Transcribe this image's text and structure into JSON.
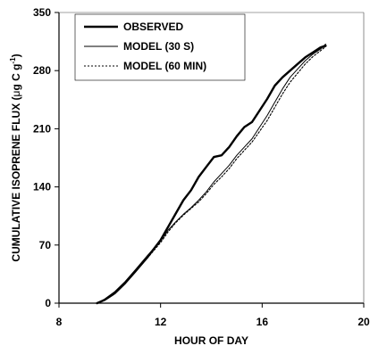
{
  "chart_data": {
    "type": "line",
    "title": "",
    "xlabel": "HOUR OF DAY",
    "ylabel_parts": [
      "CUMULATIVE ISOPRENE FLUX (",
      "μ",
      "g C g",
      "-1",
      ")"
    ],
    "xlim": [
      8,
      20
    ],
    "ylim": [
      0,
      350
    ],
    "x_ticks": [
      8,
      12,
      16,
      20
    ],
    "x_tick_labels": [
      "8",
      "12",
      "16",
      "20"
    ],
    "y_ticks": [
      0,
      70,
      140,
      210,
      280,
      350
    ],
    "y_tick_labels": [
      "0",
      "70",
      "140",
      "210",
      "280",
      "350"
    ],
    "grid": false,
    "legend_position": "top-left",
    "series": [
      {
        "name": "OBSERVED",
        "line_style": "solid-thick",
        "x": [
          9.5,
          9.8,
          10.2,
          10.6,
          11.0,
          11.5,
          12.0,
          12.3,
          12.6,
          12.9,
          13.2,
          13.5,
          13.8,
          14.1,
          14.4,
          14.7,
          15.0,
          15.3,
          15.6,
          15.9,
          16.2,
          16.5,
          16.8,
          17.1,
          17.4,
          17.7,
          18.0,
          18.3,
          18.5
        ],
        "y": [
          0,
          4,
          12,
          24,
          38,
          56,
          76,
          92,
          108,
          124,
          136,
          152,
          164,
          176,
          178,
          188,
          201,
          212,
          218,
          232,
          246,
          262,
          272,
          280,
          288,
          296,
          302,
          308,
          310
        ]
      },
      {
        "name": "MODEL (30 S)",
        "line_style": "solid-thin",
        "x": [
          9.5,
          9.8,
          10.2,
          10.6,
          11.0,
          11.5,
          12.0,
          12.3,
          12.6,
          12.9,
          13.2,
          13.5,
          13.8,
          14.1,
          14.4,
          14.7,
          15.0,
          15.3,
          15.6,
          15.9,
          16.2,
          16.5,
          16.8,
          17.1,
          17.4,
          17.7,
          18.0,
          18.3,
          18.5
        ],
        "y": [
          0,
          5,
          14,
          26,
          40,
          58,
          75,
          88,
          98,
          107,
          115,
          124,
          134,
          146,
          156,
          166,
          178,
          188,
          198,
          212,
          226,
          242,
          258,
          272,
          282,
          292,
          300,
          306,
          312
        ]
      },
      {
        "name": "MODEL (60 MIN)",
        "line_style": "dotted",
        "x": [
          9.5,
          9.8,
          10.2,
          10.6,
          11.0,
          11.5,
          12.0,
          12.3,
          12.6,
          12.9,
          13.2,
          13.5,
          13.8,
          14.1,
          14.4,
          14.7,
          15.0,
          15.3,
          15.6,
          15.9,
          16.2,
          16.5,
          16.8,
          17.1,
          17.4,
          17.7,
          18.0,
          18.3,
          18.5
        ],
        "y": [
          0,
          4,
          13,
          25,
          38,
          55,
          73,
          86,
          97,
          106,
          114,
          122,
          132,
          143,
          152,
          162,
          174,
          184,
          194,
          207,
          220,
          236,
          252,
          266,
          277,
          288,
          297,
          304,
          309
        ]
      }
    ]
  }
}
